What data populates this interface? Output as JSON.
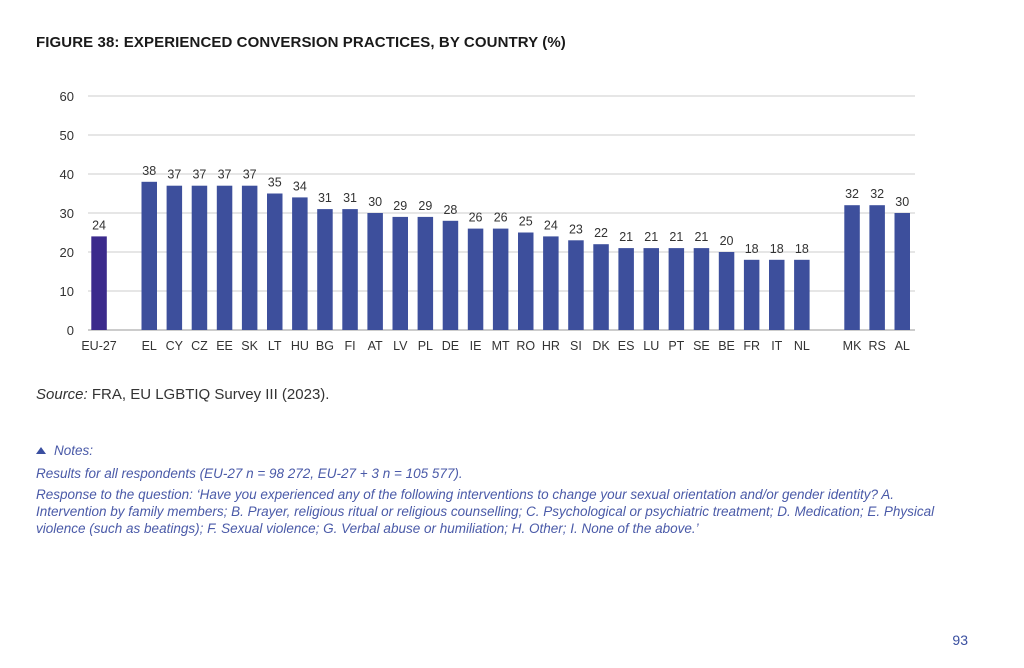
{
  "figure_title": "FIGURE 38: EXPERIENCED CONVERSION PRACTICES, BY COUNTRY (%)",
  "source": {
    "label": "Source:",
    "text": "FRA, EU LGBTIQ Survey III (2023)."
  },
  "notes": {
    "heading": "Notes:",
    "lines": [
      "Results for all respondents (EU-27 n = 98 272, EU-27 + 3 n = 105 577).",
      "Response to the question: ‘Have you experienced any of the following interventions to change your sexual orientation and/or gender identity? A. Intervention by family members; B. Prayer, religious ritual or religious counselling; C. Psychological or psychiatric treatment; D. Medication; E. Physical violence (such as beatings); F. Sexual violence; G. Verbal abuse or humiliation; H. Other; I. None of the above.’"
    ]
  },
  "page_number": "93",
  "colors": {
    "eu_bar": "#3b2a8c",
    "country_bar": "#3d4f9c",
    "grid": "#cccccc",
    "text": "#333333"
  },
  "chart_data": {
    "type": "bar",
    "title": "FIGURE 38: EXPERIENCED CONVERSION PRACTICES, BY COUNTRY (%)",
    "ylim": [
      0,
      60
    ],
    "yticks": [
      0,
      10,
      20,
      30,
      40,
      50,
      60
    ],
    "grid": true,
    "groups": [
      {
        "categories": [
          "EU-27"
        ],
        "values": [
          24
        ],
        "color": "#3b2a8c"
      },
      {
        "categories": [
          "EL",
          "CY",
          "CZ",
          "EE",
          "SK",
          "LT",
          "HU",
          "BG",
          "FI",
          "AT",
          "LV",
          "PL",
          "DE",
          "IE",
          "MT",
          "RO",
          "HR",
          "SI",
          "DK",
          "ES",
          "LU",
          "PT",
          "SE",
          "BE",
          "FR",
          "IT",
          "NL"
        ],
        "values": [
          38,
          37,
          37,
          37,
          37,
          35,
          34,
          31,
          31,
          30,
          29,
          29,
          28,
          26,
          26,
          25,
          24,
          23,
          22,
          21,
          21,
          21,
          21,
          20,
          18,
          18,
          18
        ],
        "color": "#3d4f9c"
      },
      {
        "categories": [
          "MK",
          "RS",
          "AL"
        ],
        "values": [
          32,
          32,
          30
        ],
        "color": "#3d4f9c"
      }
    ]
  }
}
